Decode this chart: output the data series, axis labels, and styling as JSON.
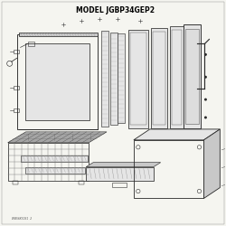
{
  "title": "MODEL JGBP34GEP2",
  "background_color": "#f5f5f0",
  "line_color": "#2a2a2a",
  "gray_fill": "#c8c8c8",
  "light_fill": "#e5e5e5",
  "part_number_text": "WB56K5031  2",
  "title_fontsize": 5.5,
  "figsize": [
    2.5,
    2.5
  ],
  "dpi": 100
}
